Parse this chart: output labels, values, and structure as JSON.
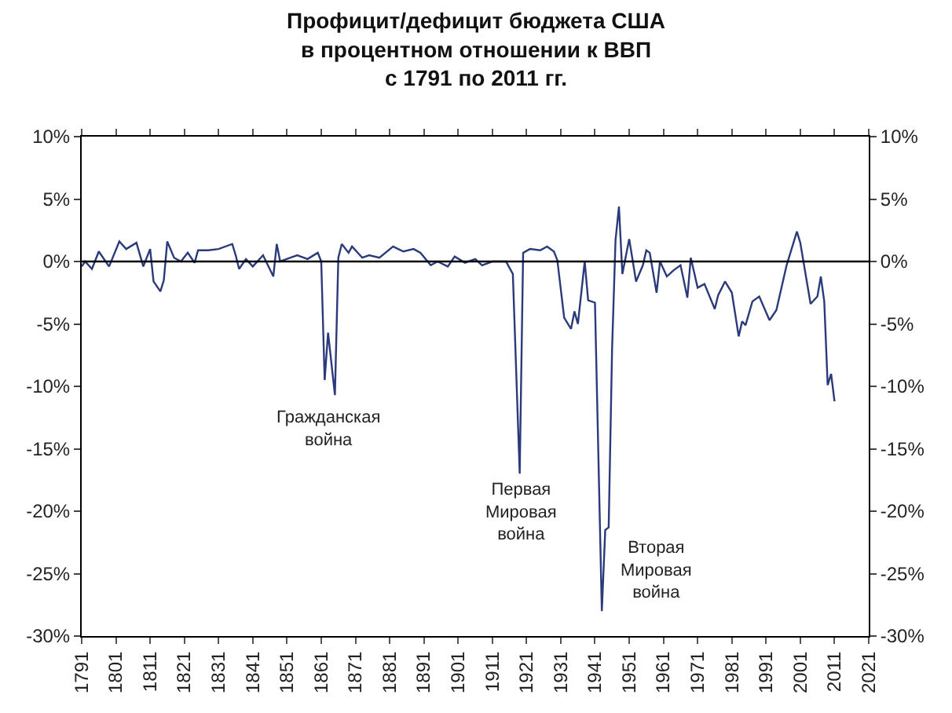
{
  "chart_data": {
    "type": "line",
    "title": "Профицит/дефицит бюджета США\nв процентном отношении к ВВП\nс 1791 по 2011 гг.",
    "x": [
      1791,
      1792,
      1794,
      1796,
      1799,
      1802,
      1804,
      1807,
      1809,
      1811,
      1812,
      1814,
      1815,
      1816,
      1818,
      1820,
      1822,
      1824,
      1825,
      1828,
      1831,
      1835,
      1836,
      1837,
      1839,
      1841,
      1844,
      1847,
      1848,
      1849,
      1852,
      1854,
      1857,
      1860,
      1861,
      1862,
      1863,
      1865,
      1866,
      1867,
      1869,
      1870,
      1873,
      1875,
      1878,
      1882,
      1885,
      1888,
      1890,
      1893,
      1895,
      1898,
      1900,
      1903,
      1906,
      1908,
      1911,
      1913,
      1915,
      1917,
      1919,
      1920,
      1922,
      1925,
      1927,
      1929,
      1930,
      1932,
      1934,
      1935,
      1936,
      1938,
      1939,
      1941,
      1943,
      1944,
      1945,
      1946,
      1947,
      1948,
      1949,
      1951,
      1953,
      1955,
      1956,
      1957,
      1959,
      1960,
      1962,
      1964,
      1966,
      1968,
      1969,
      1971,
      1973,
      1976,
      1977,
      1979,
      1981,
      1983,
      1984,
      1985,
      1987,
      1989,
      1992,
      1994,
      1997,
      2000,
      2001,
      2004,
      2006,
      2007,
      2008,
      2009,
      2010,
      2011
    ],
    "series": [
      {
        "color": "#2b3a7a",
        "values": [
          -0.4,
          0,
          -0.6,
          0.8,
          -0.4,
          1.6,
          1.0,
          1.5,
          -0.4,
          1.0,
          -1.6,
          -2.4,
          -1.5,
          1.6,
          0.3,
          0,
          0.7,
          -0.1,
          0.9,
          0.9,
          1.0,
          1.4,
          0.5,
          -0.6,
          0.2,
          -0.4,
          0.5,
          -1.2,
          1.4,
          0,
          0.3,
          0.5,
          0.2,
          0.7,
          0,
          -9.5,
          -5.7,
          -10.7,
          0.3,
          1.4,
          0.7,
          1.2,
          0.3,
          0.5,
          0.3,
          1.2,
          0.8,
          1.0,
          0.7,
          -0.3,
          0,
          -0.4,
          0.4,
          -0.1,
          0.2,
          -0.3,
          0,
          0,
          0,
          -1.0,
          -17.0,
          0.7,
          1.0,
          0.9,
          1.2,
          0.8,
          0.1,
          -4.5,
          -5.4,
          -4.0,
          -5.0,
          0,
          -3.1,
          -3.3,
          -28.0,
          -21.5,
          -21.3,
          -7.0,
          1.7,
          4.4,
          -1.0,
          1.8,
          -1.6,
          -0.3,
          0.9,
          0.7,
          -2.5,
          0,
          -1.2,
          -0.7,
          -0.3,
          -2.9,
          0.3,
          -2.1,
          -1.8,
          -3.8,
          -2.7,
          -1.6,
          -2.5,
          -6.0,
          -4.8,
          -5.1,
          -3.2,
          -2.8,
          -4.7,
          -3.9,
          -0.3,
          2.4,
          1.5,
          -3.4,
          -2.8,
          -1.2,
          -3.2,
          -9.9,
          -9.0,
          -11.2
        ]
      }
    ],
    "xlim": [
      1791,
      2021
    ],
    "xticks": [
      1791,
      1801,
      1811,
      1821,
      1831,
      1841,
      1851,
      1861,
      1871,
      1881,
      1891,
      1901,
      1911,
      1921,
      1931,
      1941,
      1951,
      1961,
      1971,
      1981,
      1991,
      2001,
      2011,
      2021
    ],
    "ylim": [
      -30,
      10
    ],
    "yticks": [
      {
        "value": 10,
        "label": "10%"
      },
      {
        "value": 5,
        "label": "5%"
      },
      {
        "value": 0,
        "label": "0%"
      },
      {
        "value": -5,
        "label": "-5%"
      },
      {
        "value": -10,
        "label": "-10%"
      },
      {
        "value": -15,
        "label": "-15%"
      },
      {
        "value": -20,
        "label": "-20%"
      },
      {
        "value": -25,
        "label": "-25%"
      },
      {
        "value": -30,
        "label": "-30%"
      }
    ],
    "y2lim": [
      -30,
      10
    ],
    "y2ticks": [
      {
        "value": 10,
        "label": "10%"
      },
      {
        "value": 5,
        "label": "5%"
      },
      {
        "value": 0,
        "label": "0%"
      },
      {
        "value": -5,
        "label": "-5%"
      },
      {
        "value": -10,
        "label": "-10%"
      },
      {
        "value": -15,
        "label": "-15%"
      },
      {
        "value": -20,
        "label": "-20%"
      },
      {
        "value": -25,
        "label": "-25%"
      },
      {
        "value": -30,
        "label": "-30%"
      }
    ],
    "ref_lines": [
      {
        "axis": "y",
        "value": 0,
        "color": "#000000"
      }
    ],
    "annotations": [
      "Гражданская\nвойна",
      "Первая\nМировая\nвойна",
      "Вторая\nМировая\nвойна"
    ],
    "marker": "none",
    "line_style": "solid"
  }
}
